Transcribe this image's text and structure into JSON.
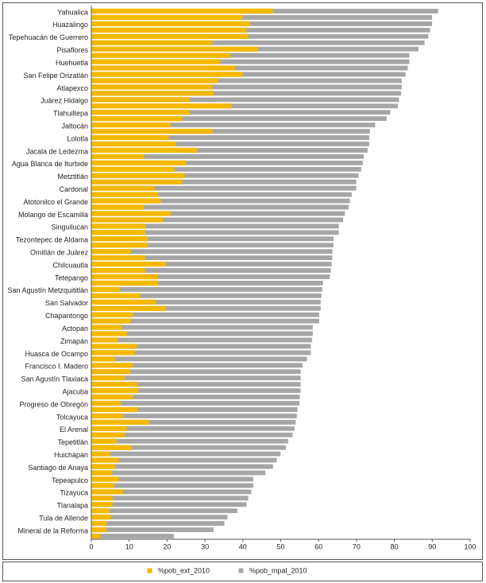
{
  "chart_data": {
    "type": "barh",
    "categories": [
      "Yahualica",
      null,
      "Huazalingo",
      null,
      "Tepehuacán de Guerrero",
      null,
      "Pisaflores",
      null,
      "Huehuetla",
      null,
      "San Felipe Orizatlán",
      null,
      "Atlapexco",
      null,
      "Juárez Hidalgo",
      null,
      "Tlahuiltepa",
      null,
      "Jaltocán",
      null,
      "Lolotla",
      null,
      "Jacala de Ledezma",
      null,
      "Agua Blanca de Iturbide",
      null,
      "Metztitlán",
      null,
      "Cardonal",
      null,
      "Atotonilco el Grande",
      null,
      "Molango de Escamilla",
      null,
      "Singuilucan",
      null,
      "Tezontepec de Aldama",
      null,
      "Omitlán de Juárez",
      null,
      "Chilcuautla",
      null,
      "Tetepango",
      null,
      "San Agustín Metzquititlán",
      null,
      "San Salvador",
      null,
      "Chapantongo",
      null,
      "Actopan",
      null,
      "Zimapán",
      null,
      "Huasca de Ocampo",
      null,
      "Francisco I. Madero",
      null,
      "San Agustín Tlaxiaca",
      null,
      "Ajacuba",
      null,
      "Progreso de Obregón",
      null,
      "Tolcayuca",
      null,
      "El Arenal",
      null,
      "Tepetitlán",
      null,
      "Huichapan",
      null,
      "Santiago de Anaya",
      null,
      "Tepeapulco",
      null,
      "Tizayuca",
      null,
      "Tlanalapa",
      null,
      "Tula de Allende",
      null,
      "Mineral de la Reforma",
      null
    ],
    "series": [
      {
        "name": "%pob_mpal_2010",
        "color": "#a6a6a6",
        "values": [
          91.6,
          90,
          90,
          89.5,
          89,
          88,
          86.4,
          84,
          84,
          83.6,
          83,
          82,
          82,
          81.8,
          81.3,
          81,
          79,
          78,
          75,
          73.6,
          73.4,
          73.4,
          73,
          72,
          71.7,
          71.3,
          70.6,
          70,
          70,
          68.8,
          68.3,
          68,
          67,
          66.5,
          65.4,
          65.4,
          64,
          64,
          63.7,
          63.7,
          63.5,
          63.3,
          63,
          61.2,
          61,
          60.8,
          60.6,
          60.6,
          60.2,
          60.2,
          58.5,
          58.5,
          58.3,
          58,
          58,
          57,
          55.8,
          55.3,
          55.3,
          55.3,
          55.3,
          55.1,
          55,
          54.5,
          54.3,
          54,
          53.7,
          53.2,
          52,
          51.4,
          50,
          49,
          48,
          46,
          42.8,
          42.8,
          42.3,
          41.5,
          41,
          38.6,
          36,
          35.2,
          32.3,
          21.8
        ]
      },
      {
        "name": "%pob_ext_2010",
        "color": "#f5b800",
        "values": [
          48,
          40,
          42,
          41,
          41.5,
          32,
          44,
          36.7,
          34,
          38,
          40,
          33.5,
          32,
          32.3,
          26,
          37,
          26,
          24,
          21,
          32,
          20.5,
          22.4,
          28,
          14,
          25,
          22,
          24.7,
          24,
          16.8,
          17.6,
          18.4,
          14,
          21,
          19,
          14.3,
          14.3,
          14.9,
          14.9,
          10.5,
          14.3,
          19.7,
          14.3,
          17.6,
          17.6,
          7.5,
          13,
          17,
          19.7,
          11,
          10.5,
          8,
          9.4,
          7,
          12,
          11.5,
          6.3,
          11,
          10.3,
          8.8,
          12.2,
          12.4,
          11,
          7.8,
          12.2,
          8.4,
          15.3,
          9.4,
          8.8,
          6.7,
          10.7,
          5,
          7.3,
          6.3,
          5.5,
          7.3,
          6,
          8.4,
          5.7,
          5.7,
          4.8,
          5.2,
          4,
          4,
          2.5
        ]
      }
    ],
    "xlim": [
      0,
      100
    ],
    "xticks": [
      0,
      10,
      20,
      30,
      40,
      50,
      60,
      70,
      80,
      90,
      100
    ]
  }
}
